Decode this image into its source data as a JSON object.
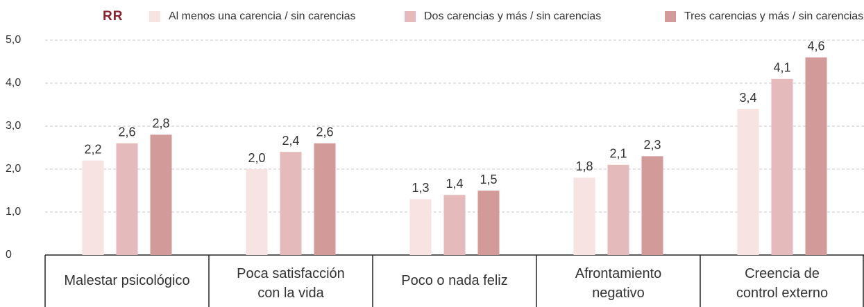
{
  "chart_data": {
    "type": "bar",
    "legend_title": "RR",
    "categories": [
      [
        "Malestar psicológico"
      ],
      [
        "Poca satisfacción",
        "con la vida"
      ],
      [
        "Poco o nada feliz"
      ],
      [
        "Afrontamiento",
        "negativo"
      ],
      [
        "Creencia de",
        "control externo"
      ]
    ],
    "series": [
      {
        "name": "Al menos una carencia / sin carencias",
        "color": "#f8e3e3",
        "values": [
          2.2,
          2.0,
          1.3,
          1.8,
          3.4
        ],
        "value_labels": [
          "2,2",
          "2,0",
          "1,3",
          "1,8",
          "3,4"
        ]
      },
      {
        "name": "Dos carencias y más / sin carencias",
        "color": "#e5baba",
        "values": [
          2.6,
          2.4,
          1.4,
          2.1,
          4.1
        ],
        "value_labels": [
          "2,6",
          "2,4",
          "1,4",
          "2,1",
          "4,1"
        ]
      },
      {
        "name": "Tres carencias y más / sin carencias",
        "color": "#d39a9a",
        "values": [
          2.8,
          2.6,
          1.5,
          2.3,
          4.6
        ],
        "value_labels": [
          "2,8",
          "2,6",
          "1,5",
          "2,3",
          "4,6"
        ]
      }
    ],
    "ylim": [
      0,
      5
    ],
    "yticks": [
      0,
      {
        "value": 1,
        "label": "1,0"
      },
      {
        "value": 2,
        "label": "2,0"
      },
      {
        "value": 3,
        "label": "3,0"
      },
      {
        "value": 4,
        "label": "4,0"
      },
      {
        "value": 5,
        "label": "5,0"
      }
    ],
    "grid": true,
    "legend": "top"
  }
}
